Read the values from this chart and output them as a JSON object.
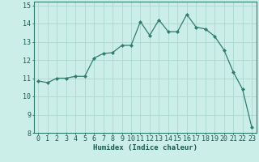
{
  "x": [
    0,
    1,
    2,
    3,
    4,
    5,
    6,
    7,
    8,
    9,
    10,
    11,
    12,
    13,
    14,
    15,
    16,
    17,
    18,
    19,
    20,
    21,
    22,
    23
  ],
  "y": [
    10.85,
    10.75,
    11.0,
    11.0,
    11.1,
    11.1,
    12.1,
    12.35,
    12.4,
    12.8,
    12.8,
    14.1,
    13.35,
    14.2,
    13.55,
    13.55,
    14.5,
    13.8,
    13.7,
    13.3,
    12.55,
    11.35,
    10.4,
    8.3
  ],
  "xlabel": "Humidex (Indice chaleur)",
  "line_color": "#2e7d6e",
  "marker": "D",
  "marker_size": 2.0,
  "bg_color": "#cceee8",
  "grid_color": "#aad8d0",
  "xlim": [
    -0.5,
    23.5
  ],
  "ylim": [
    8,
    15.2
  ],
  "yticks": [
    8,
    9,
    10,
    11,
    12,
    13,
    14,
    15
  ],
  "xticks": [
    0,
    1,
    2,
    3,
    4,
    5,
    6,
    7,
    8,
    9,
    10,
    11,
    12,
    13,
    14,
    15,
    16,
    17,
    18,
    19,
    20,
    21,
    22,
    23
  ],
  "xlabel_fontsize": 6.5,
  "tick_fontsize": 6.0,
  "text_color": "#1a5a50"
}
